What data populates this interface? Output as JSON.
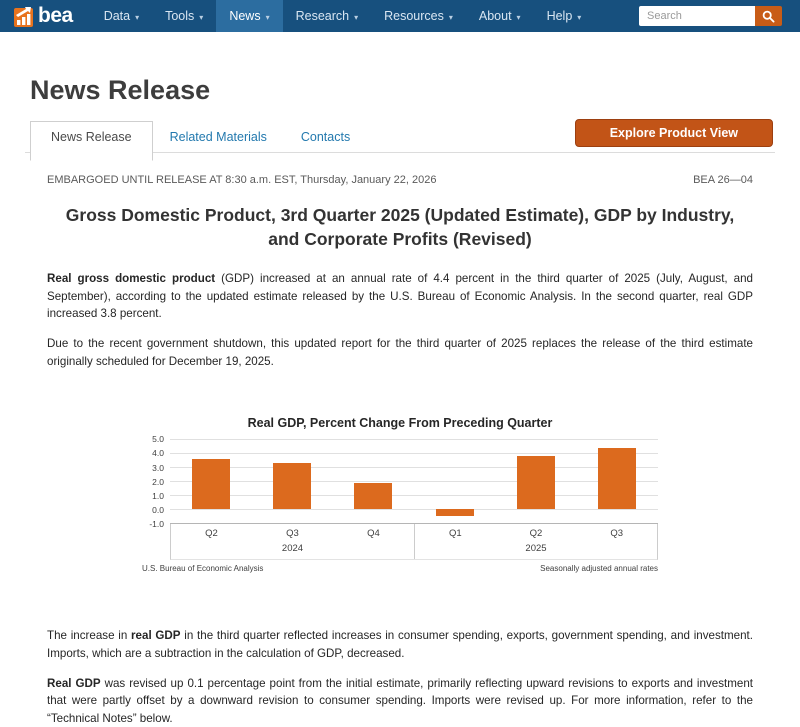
{
  "navbar": {
    "brand": "bea",
    "items": [
      {
        "label": "Data",
        "has_menu": true
      },
      {
        "label": "Tools",
        "has_menu": true
      },
      {
        "label": "News",
        "has_menu": true,
        "active": true
      },
      {
        "label": "Research",
        "has_menu": true
      },
      {
        "label": "Resources",
        "has_menu": true
      },
      {
        "label": "About",
        "has_menu": true
      },
      {
        "label": "Help",
        "has_menu": true
      }
    ],
    "search_placeholder": "Search"
  },
  "page": {
    "title": "News Release"
  },
  "tabs": [
    {
      "label": "News Release",
      "active": true
    },
    {
      "label": "Related Materials",
      "active": false
    },
    {
      "label": "Contacts",
      "active": false
    }
  ],
  "explore_button_label": "Explore Product View",
  "release_meta": {
    "embargo": "EMBARGOED UNTIL RELEASE AT 8:30 a.m. EST, Thursday, January 22, 2026",
    "release_number": "BEA 26—04"
  },
  "headline": "Gross Domestic Product, 3rd Quarter 2025 (Updated Estimate), GDP by Industry, and Corporate Profits (Revised)",
  "intro_paragraphs": [
    {
      "parts": [
        {
          "text": "Real gross domestic product",
          "bold": true
        },
        {
          "text": " (GDP) increased at an annual rate of 4.4 percent in the third quarter of 2025 (July, August, and September), according to the updated estimate released by the U.S. Bureau of Economic Analysis. In the second quarter, real GDP increased 3.8 percent.",
          "bold": false
        }
      ]
    },
    {
      "parts": [
        {
          "text": "Due to the recent government shutdown, this updated report for the third quarter of 2025 replaces the release of the third estimate originally scheduled for December 19, 2025.",
          "bold": false
        }
      ]
    }
  ],
  "chart_data": {
    "type": "bar",
    "title": "Real GDP, Percent Change From Preceding Quarter",
    "categories": [
      "Q2",
      "Q3",
      "Q4",
      "Q1",
      "Q2",
      "Q3"
    ],
    "values": [
      3.6,
      3.3,
      1.9,
      -0.5,
      3.8,
      4.4
    ],
    "groups": [
      {
        "label": "2024",
        "count": 3
      },
      {
        "label": "2025",
        "count": 3
      }
    ],
    "ylim": [
      -1.0,
      5.0
    ],
    "yticks": [
      "5.0",
      "4.0",
      "3.0",
      "2.0",
      "1.0",
      "0.0",
      "-1.0"
    ],
    "grid": true,
    "legend": "none",
    "bar_color": "#DC6A1E",
    "footnote_left": "U.S. Bureau of Economic Analysis",
    "footnote_right": "Seasonally adjusted annual rates"
  },
  "closing_paragraphs": [
    {
      "parts": [
        {
          "text": "The increase in ",
          "bold": false
        },
        {
          "text": "real GDP",
          "bold": true
        },
        {
          "text": " in the third quarter reflected increases in consumer spending, exports, government spending, and investment. Imports, which are a subtraction in the calculation of GDP, decreased.",
          "bold": false
        }
      ]
    },
    {
      "parts": [
        {
          "text": "Real GDP",
          "bold": true
        },
        {
          "text": " was revised up 0.1 percentage point from the initial estimate, primarily reflecting upward revisions to exports and investment that were partly offset by a downward revision to consumer spending. Imports were revised up. For more information, refer to the “Technical Notes” below.",
          "bold": false
        }
      ]
    }
  ],
  "colors": {
    "navbar_bg": "#17507E",
    "navbar_active": "#2C6DA0",
    "button_orange": "#C25417",
    "bar_orange": "#DC6A1E",
    "link_blue": "#2379AE",
    "logo_orange": "#E8731E"
  }
}
